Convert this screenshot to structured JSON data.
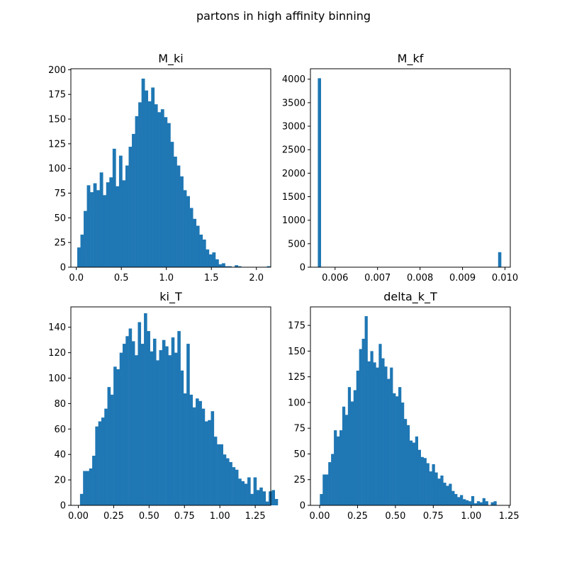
{
  "figure": {
    "title": "partons in high affinity binning"
  },
  "colors": {
    "bar": "#1f77b4"
  },
  "chart_data": [
    {
      "type": "bar",
      "title": "M_ki",
      "xlabel": "",
      "ylabel": "",
      "x_range": [
        -0.0605,
        2.1595
      ],
      "ylim": [
        0,
        201
      ],
      "x_ticks": [
        "0.0",
        "0.5",
        "1.0",
        "1.5",
        "2.0"
      ],
      "y_ticks": [
        "0",
        "25",
        "50",
        "75",
        "100",
        "125",
        "150",
        "175",
        "200"
      ],
      "bin_start": 0.01,
      "bin_width": 0.0357,
      "values": [
        20,
        33,
        57,
        83,
        76,
        85,
        78,
        96,
        73,
        86,
        91,
        120,
        82,
        113,
        88,
        103,
        122,
        135,
        153,
        167,
        191,
        179,
        168,
        182,
        165,
        157,
        160,
        152,
        146,
        127,
        112,
        103,
        92,
        78,
        72,
        60,
        49,
        42,
        33,
        28,
        18,
        13,
        15,
        8,
        3,
        4,
        1,
        1,
        0,
        2,
        1,
        0,
        0,
        0,
        0,
        0,
        0,
        0,
        0,
        1
      ]
    },
    {
      "type": "bar",
      "title": "M_kf",
      "xlabel": "",
      "ylabel": "",
      "x_range": [
        0.00542,
        0.010125
      ],
      "ylim": [
        0,
        4222
      ],
      "x_ticks": [
        "0.006",
        "0.007",
        "0.008",
        "0.009",
        "0.010"
      ],
      "y_ticks": [
        "0",
        "500",
        "1000",
        "1500",
        "2000",
        "2500",
        "3000",
        "3500",
        "4000"
      ],
      "bars": [
        {
          "x_start": 0.005594,
          "x_end": 0.005665,
          "value": 4020
        },
        {
          "x_start": 0.009838,
          "x_end": 0.009909,
          "value": 320
        }
      ]
    },
    {
      "type": "bar",
      "title": "ki_T",
      "xlabel": "",
      "ylabel": "",
      "x_range": [
        -0.0525,
        1.3595
      ],
      "ylim": [
        0,
        156
      ],
      "x_ticks": [
        "0.00",
        "0.25",
        "0.50",
        "0.75",
        "1.00",
        "1.25"
      ],
      "y_ticks": [
        "0",
        "20",
        "40",
        "60",
        "80",
        "100",
        "120",
        "140"
      ],
      "bin_start": 0.012,
      "bin_width": 0.0215,
      "values": [
        9,
        27,
        27,
        29,
        39,
        62,
        66,
        69,
        76,
        93,
        87,
        109,
        107,
        120,
        127,
        133,
        139,
        129,
        118,
        144,
        127,
        151,
        137,
        121,
        131,
        114,
        122,
        130,
        125,
        118,
        132,
        120,
        137,
        106,
        88,
        127,
        87,
        77,
        84,
        82,
        76,
        66,
        67,
        74,
        54,
        48,
        48,
        40,
        37,
        34,
        30,
        28,
        21,
        19,
        17,
        22,
        9,
        22,
        12,
        14,
        11,
        3,
        11,
        12,
        5
      ]
    },
    {
      "type": "bar",
      "title": "delta_k_T",
      "xlabel": "",
      "ylabel": "",
      "x_range": [
        -0.0608,
        1.2583
      ],
      "ylim": [
        0,
        193
      ],
      "x_ticks": [
        "0.00",
        "0.25",
        "0.50",
        "0.75",
        "1.00",
        "1.25"
      ],
      "y_ticks": [
        "0",
        "25",
        "50",
        "75",
        "100",
        "125",
        "150",
        "175"
      ],
      "bin_start": 0.0014,
      "bin_width": 0.0185,
      "values": [
        11,
        30,
        30,
        42,
        50,
        73,
        67,
        73,
        96,
        88,
        115,
        101,
        112,
        131,
        152,
        162,
        184,
        140,
        150,
        139,
        134,
        157,
        143,
        135,
        123,
        134,
        109,
        106,
        115,
        100,
        84,
        78,
        63,
        61,
        67,
        54,
        47,
        46,
        41,
        33,
        40,
        32,
        26,
        29,
        22,
        19,
        21,
        14,
        11,
        8,
        10,
        6,
        5,
        4,
        9,
        2,
        4,
        3,
        7,
        4,
        0,
        3,
        4
      ]
    }
  ]
}
